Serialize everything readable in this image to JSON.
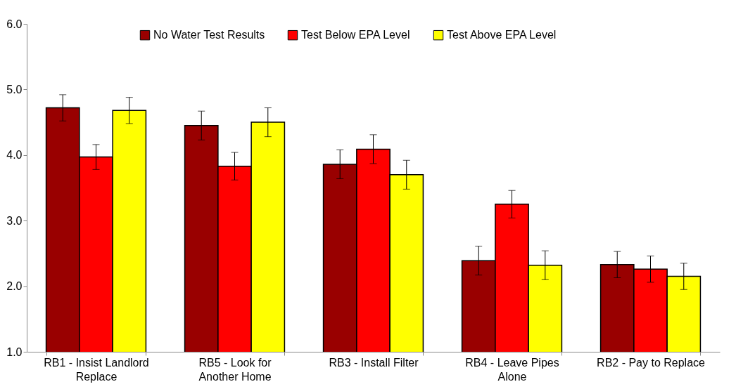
{
  "chart_data": {
    "type": "bar",
    "categories": [
      "RB1 - Insist Landlord Replace",
      "RB5 - Look for Another Home",
      "RB3 - Install Filter",
      "RB4 - Leave Pipes Alone",
      "RB2 - Pay to Replace"
    ],
    "series": [
      {
        "name": "No Water Test Results",
        "color": "#990000",
        "values": [
          4.72,
          4.45,
          3.86,
          2.39,
          2.33
        ],
        "errors": [
          0.2,
          0.22,
          0.22,
          0.22,
          0.2
        ]
      },
      {
        "name": "Test Below EPA Level",
        "color": "#ff0000",
        "values": [
          3.97,
          3.83,
          4.09,
          3.25,
          2.26
        ],
        "errors": [
          0.19,
          0.21,
          0.22,
          0.21,
          0.2
        ]
      },
      {
        "name": "Test Above EPA Level",
        "color": "#ffff00",
        "values": [
          4.68,
          4.5,
          3.7,
          2.32,
          2.15
        ],
        "errors": [
          0.2,
          0.22,
          0.22,
          0.22,
          0.2
        ]
      }
    ],
    "ylim": [
      1,
      6
    ],
    "yticks": [
      {
        "value": 1,
        "label": "1.0"
      },
      {
        "value": 2,
        "label": "2.0"
      },
      {
        "value": 3,
        "label": "3.0"
      },
      {
        "value": 4,
        "label": "4.0"
      },
      {
        "value": 5,
        "label": "5.0"
      },
      {
        "value": 6,
        "label": "6.0"
      }
    ],
    "grid": false,
    "legend": "top"
  }
}
